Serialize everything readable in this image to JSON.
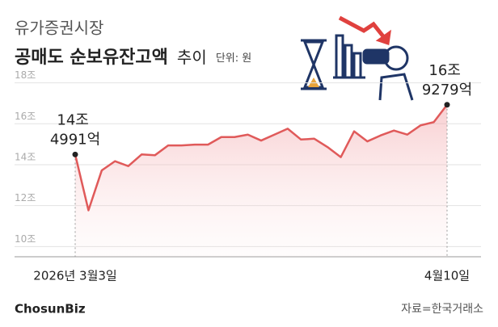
{
  "chart_data": {
    "type": "line",
    "subtitle": "유가증권시장",
    "title": "공매도 순보유잔고액",
    "title_suffix": "추이",
    "unit": "단위: 원",
    "source": "자료=한국거래소",
    "logo": "ChosunBiz",
    "categories": [
      "2026년 3월3일",
      null,
      null,
      null,
      null,
      null,
      null,
      null,
      null,
      null,
      null,
      null,
      null,
      null,
      null,
      null,
      null,
      null,
      null,
      null,
      null,
      null,
      null,
      null,
      null,
      null,
      null,
      null,
      "4월10일"
    ],
    "series": [
      {
        "name": "공매도 순보유잔고액",
        "color": "#e05a5a",
        "values": [
          14.4991,
          11.77,
          13.72,
          14.17,
          13.93,
          14.5,
          14.46,
          14.94,
          14.94,
          14.98,
          14.98,
          15.35,
          15.35,
          15.47,
          15.18,
          15.47,
          15.76,
          15.23,
          15.27,
          14.86,
          14.37,
          15.63,
          15.14,
          15.43,
          15.67,
          15.47,
          15.92,
          16.08,
          16.9279
        ],
        "value_labels": [
          "14조 4991억",
          null,
          null,
          null,
          null,
          null,
          null,
          null,
          null,
          null,
          null,
          null,
          null,
          null,
          null,
          null,
          null,
          null,
          null,
          null,
          null,
          null,
          null,
          null,
          null,
          null,
          null,
          null,
          "16조 9279억"
        ]
      }
    ],
    "ylim": [
      9.5,
      18.3
    ],
    "yticks": [
      {
        "value": 10,
        "label": "10조"
      },
      {
        "value": 12,
        "label": "12조"
      },
      {
        "value": 14,
        "label": "14조"
      },
      {
        "value": 16,
        "label": "16조"
      },
      {
        "value": 18,
        "label": "18조"
      }
    ],
    "grid": true
  }
}
